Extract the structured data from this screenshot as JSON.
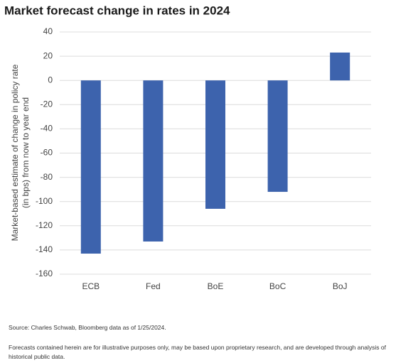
{
  "chart_data": {
    "type": "bar",
    "title": "Market forecast change in rates in 2024",
    "ylabel": [
      "Market-based estimate of change in policy rate",
      "(in bps) from now to year end"
    ],
    "categories": [
      "ECB",
      "Fed",
      "BoE",
      "BoC",
      "BoJ"
    ],
    "values": [
      -143,
      -133,
      -106,
      -92,
      23
    ],
    "color": "#3d63ad",
    "ylim": [
      -160,
      40
    ],
    "yticks": [
      -160,
      -140,
      -120,
      -100,
      -80,
      -60,
      -40,
      -20,
      0,
      20,
      40
    ],
    "grid": true
  },
  "footer": {
    "source": "Source: Charles Schwab, Bloomberg data as of 1/25/2024.",
    "note": "Forecasts contained herein are for illustrative purposes only, may be based upon proprietary research, and are developed through analysis of historical public data."
  }
}
